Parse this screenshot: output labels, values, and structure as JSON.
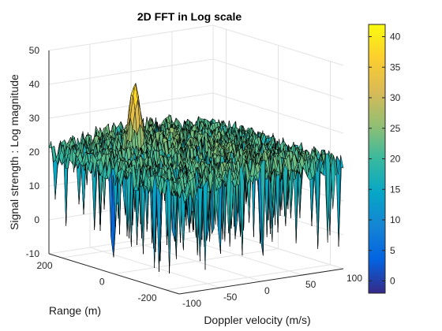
{
  "chart_data": {
    "type": "surface",
    "title": "2D FFT in Log scale",
    "xlabel": "Doppler velocity (m/s)",
    "ylabel": "Range (m)",
    "zlabel": "Signal strength : Log magnitude",
    "xlim": [
      -100,
      100
    ],
    "ylim": [
      -250,
      250
    ],
    "zlim": [
      -10,
      50
    ],
    "xticks": [
      "-100",
      "-50",
      "0",
      "50",
      "100"
    ],
    "yticks": [
      "200",
      "0",
      "-200"
    ],
    "zticks": [
      "-10",
      "0",
      "10",
      "20",
      "30",
      "40",
      "50"
    ],
    "noise_floor_mean": 19,
    "noise_floor_min": -7,
    "noise_floor_max": 27,
    "peak": {
      "doppler_velocity": -40,
      "range": 110,
      "magnitude": 42
    },
    "colorbar": {
      "colormap": "parula",
      "limits": [
        -2,
        42
      ],
      "ticks": [
        "0",
        "5",
        "10",
        "15",
        "20",
        "25",
        "30",
        "35",
        "40"
      ]
    },
    "grid": true,
    "edge_color": "#000000"
  }
}
